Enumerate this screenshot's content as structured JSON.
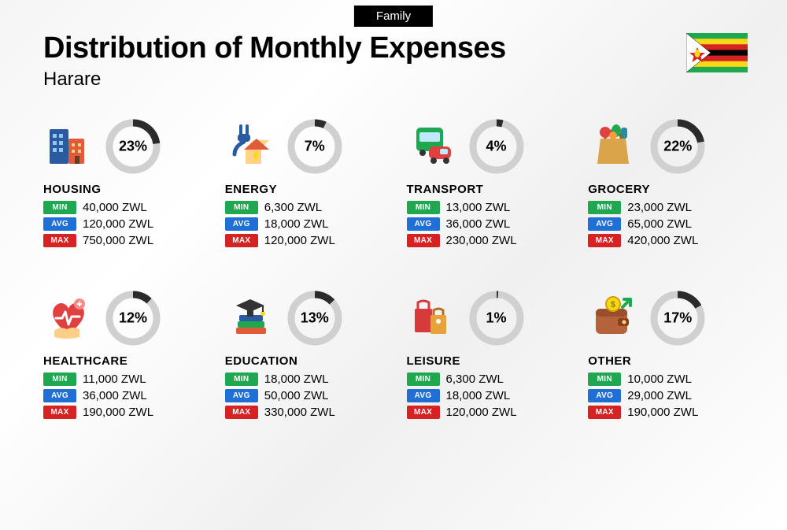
{
  "tag": "Family",
  "title": "Distribution of Monthly Expenses",
  "subtitle": "Harare",
  "currency": "ZWL",
  "badge_labels": {
    "min": "MIN",
    "avg": "AVG",
    "max": "MAX"
  },
  "colors": {
    "min": "#1fa84f",
    "avg": "#1f6fd6",
    "max": "#d62222",
    "ring_fg": "#2b2b2b",
    "ring_bg": "#d0d0d0",
    "tag_bg": "#000000",
    "text": "#000000"
  },
  "ring": {
    "size": 72,
    "stroke": 9,
    "radius": 30
  },
  "flag": {
    "stripes": [
      "#1fa84f",
      "#f7d917",
      "#d62222",
      "#000000",
      "#d62222",
      "#f7d917",
      "#1fa84f"
    ],
    "triangle": "#ffffff",
    "star": "#d62222",
    "bird": "#f7d917",
    "border": "#bdbdbd"
  },
  "categories": [
    {
      "key": "housing",
      "title": "HOUSING",
      "pct": 23,
      "min": "40,000",
      "avg": "120,000",
      "max": "750,000",
      "icon": "buildings"
    },
    {
      "key": "energy",
      "title": "ENERGY",
      "pct": 7,
      "min": "6,300",
      "avg": "18,000",
      "max": "120,000",
      "icon": "energy"
    },
    {
      "key": "transport",
      "title": "TRANSPORT",
      "pct": 4,
      "min": "13,000",
      "avg": "36,000",
      "max": "230,000",
      "icon": "transport"
    },
    {
      "key": "grocery",
      "title": "GROCERY",
      "pct": 22,
      "min": "23,000",
      "avg": "65,000",
      "max": "420,000",
      "icon": "grocery"
    },
    {
      "key": "healthcare",
      "title": "HEALTHCARE",
      "pct": 12,
      "min": "11,000",
      "avg": "36,000",
      "max": "190,000",
      "icon": "healthcare"
    },
    {
      "key": "education",
      "title": "EDUCATION",
      "pct": 13,
      "min": "18,000",
      "avg": "50,000",
      "max": "330,000",
      "icon": "education"
    },
    {
      "key": "leisure",
      "title": "LEISURE",
      "pct": 1,
      "min": "6,300",
      "avg": "18,000",
      "max": "120,000",
      "icon": "leisure"
    },
    {
      "key": "other",
      "title": "OTHER",
      "pct": 17,
      "min": "10,000",
      "avg": "29,000",
      "max": "190,000",
      "icon": "wallet"
    }
  ]
}
